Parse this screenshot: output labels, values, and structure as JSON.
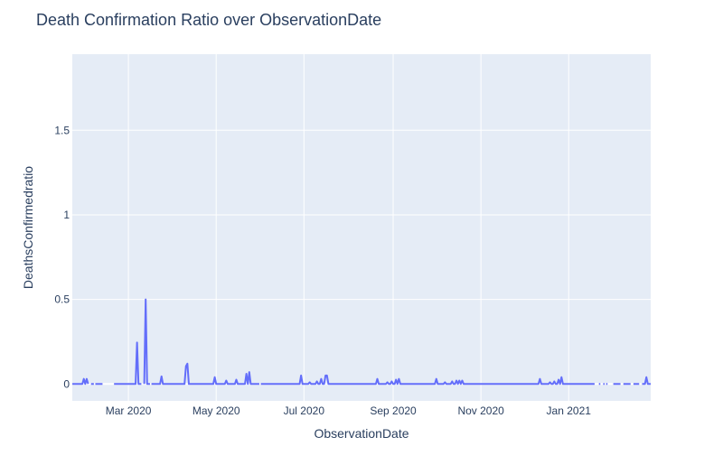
{
  "chart_data": {
    "type": "line",
    "title": "Death Confirmation Ratio over ObservationDate",
    "xlabel": "ObservationDate",
    "ylabel": "DeathsConfirmedratio",
    "xlim": [
      "2020-01-22",
      "2021-02-27"
    ],
    "ylim": [
      -0.1,
      1.95
    ],
    "x_ticks": [
      {
        "label": "Mar 2020",
        "date": "2020-03-01"
      },
      {
        "label": "May 2020",
        "date": "2020-05-01"
      },
      {
        "label": "Jul 2020",
        "date": "2020-07-01"
      },
      {
        "label": "Sep 2020",
        "date": "2020-09-01"
      },
      {
        "label": "Nov 2020",
        "date": "2020-11-01"
      },
      {
        "label": "Jan 2021",
        "date": "2021-01-01"
      }
    ],
    "y_ticks": [
      {
        "label": "0",
        "value": 0
      },
      {
        "label": "0.5",
        "value": 0.5
      },
      {
        "label": "1",
        "value": 1
      },
      {
        "label": "1.5",
        "value": 1.5
      }
    ],
    "grid": true,
    "line_color": "#636efa",
    "plot_bgcolor": "#e5ecf6",
    "series": [
      {
        "baseline_segments": [
          [
            "2020-01-22",
            "2020-02-02"
          ],
          [
            "2020-02-04",
            "2020-02-06"
          ],
          [
            "2020-02-07",
            "2020-02-12"
          ],
          [
            "2020-02-20",
            "2020-03-10"
          ],
          [
            "2020-03-12",
            "2020-03-16"
          ],
          [
            "2020-03-17",
            "2020-05-31"
          ],
          [
            "2020-06-01",
            "2021-01-19"
          ],
          [
            "2021-01-22",
            "2021-01-23"
          ],
          [
            "2021-01-25",
            "2021-01-26"
          ],
          [
            "2021-01-27",
            "2021-01-28"
          ],
          [
            "2021-02-01",
            "2021-02-06"
          ],
          [
            "2021-02-08",
            "2021-02-13"
          ],
          [
            "2021-02-15",
            "2021-02-19"
          ],
          [
            "2021-02-21",
            "2021-02-27"
          ]
        ],
        "peaks": [
          {
            "date": "2020-01-30",
            "value": 0.03
          },
          {
            "date": "2020-02-01",
            "value": 0.03
          },
          {
            "date": "2020-03-07",
            "value": 0.245
          },
          {
            "date": "2020-03-13",
            "value": 0.5
          },
          {
            "date": "2020-03-24",
            "value": 0.045
          },
          {
            "date": "2020-04-10",
            "value": 0.105
          },
          {
            "date": "2020-04-11",
            "value": 0.12
          },
          {
            "date": "2020-04-30",
            "value": 0.04
          },
          {
            "date": "2020-05-08",
            "value": 0.02
          },
          {
            "date": "2020-05-15",
            "value": 0.025
          },
          {
            "date": "2020-05-22",
            "value": 0.06
          },
          {
            "date": "2020-05-24",
            "value": 0.07
          },
          {
            "date": "2020-06-29",
            "value": 0.05
          },
          {
            "date": "2020-07-05",
            "value": 0.01
          },
          {
            "date": "2020-07-10",
            "value": 0.015
          },
          {
            "date": "2020-07-13",
            "value": 0.03
          },
          {
            "date": "2020-07-16",
            "value": 0.05
          },
          {
            "date": "2020-07-17",
            "value": 0.05
          },
          {
            "date": "2020-08-21",
            "value": 0.03
          },
          {
            "date": "2020-08-28",
            "value": 0.01
          },
          {
            "date": "2020-08-31",
            "value": 0.015
          },
          {
            "date": "2020-09-03",
            "value": 0.025
          },
          {
            "date": "2020-09-05",
            "value": 0.03
          },
          {
            "date": "2020-10-01",
            "value": 0.03
          },
          {
            "date": "2020-10-07",
            "value": 0.01
          },
          {
            "date": "2020-10-12",
            "value": 0.015
          },
          {
            "date": "2020-10-15",
            "value": 0.02
          },
          {
            "date": "2020-10-17",
            "value": 0.02
          },
          {
            "date": "2020-10-19",
            "value": 0.02
          },
          {
            "date": "2020-12-12",
            "value": 0.03
          },
          {
            "date": "2020-12-19",
            "value": 0.01
          },
          {
            "date": "2020-12-22",
            "value": 0.015
          },
          {
            "date": "2020-12-25",
            "value": 0.025
          },
          {
            "date": "2020-12-27",
            "value": 0.04
          },
          {
            "date": "2021-01-21",
            "value": 0.035
          },
          {
            "date": "2021-02-24",
            "value": 0.04
          }
        ]
      }
    ]
  }
}
